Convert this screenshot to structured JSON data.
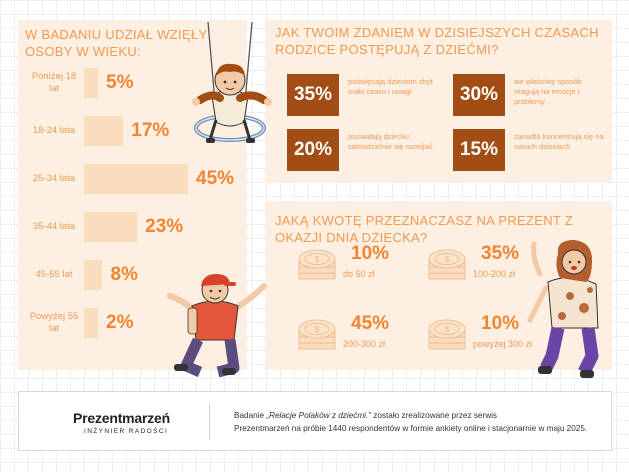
{
  "chart_data": [
    {
      "type": "bar",
      "orientation": "horizontal",
      "title": "W BADANIU UDZIAŁ WZIĘŁY OSOBY W WIEKU:",
      "categories": [
        "Poniżej 18 lat",
        "18-24 lata",
        "25-34 lata",
        "35-44 lata",
        "45-55 lat",
        "Powyżej 55 lat"
      ],
      "values": [
        5,
        17,
        45,
        23,
        8,
        2
      ],
      "value_labels": [
        "5%",
        "17%",
        "45%",
        "23%",
        "8%",
        "2%"
      ],
      "unit": "%",
      "xlim": [
        0,
        45
      ]
    }
  ],
  "colors": {
    "panel": "#fdefe2",
    "accent": "#f29a4e",
    "bar": "#fbdcbc",
    "value": "#f08533",
    "box": "#a24d14"
  },
  "parenting": {
    "title": "JAK TWOIM ZDANIEM W DZISIEJSZYCH CZASACH RODZICE POSTĘPUJĄ Z DZIEĆMI?",
    "items": [
      {
        "value": "35%",
        "text": "poświęcają dzieciom zbyt mało czasu i uwagi"
      },
      {
        "value": "30%",
        "text": "we właściwy sposób reagują na emocje i problemy"
      },
      {
        "value": "20%",
        "text": "pozwalają dziecku samodzielnie się rozwijać"
      },
      {
        "value": "15%",
        "text": "zanadto koncentrują się na swoich dzieciach"
      }
    ]
  },
  "gift": {
    "title": "JAKĄ KWOTĘ PRZEZNACZASZ NA PREZENT Z OKAZJI DNIA DZIECKA?",
    "items": [
      {
        "value": "10%",
        "label": "do 50 zł"
      },
      {
        "value": "35%",
        "label": "100-200 zł"
      },
      {
        "value": "45%",
        "label": "200-300 zł"
      },
      {
        "value": "10%",
        "label": "powyżej 300 zł"
      }
    ]
  },
  "footer": {
    "brand": "Prezentmarzeń",
    "tagline": "INŻYNIER RADOŚCI",
    "note_prefix": "Badanie ",
    "note_title": "„Relacje Polaków z dziećmi.”",
    "note_line1_rest": " zostało zrealizowane przez serwis",
    "note_line2": "Prezentmarzeń na próbie 1440 respondentów w formie ankiety online i stacjonarnie w maju 2025."
  }
}
